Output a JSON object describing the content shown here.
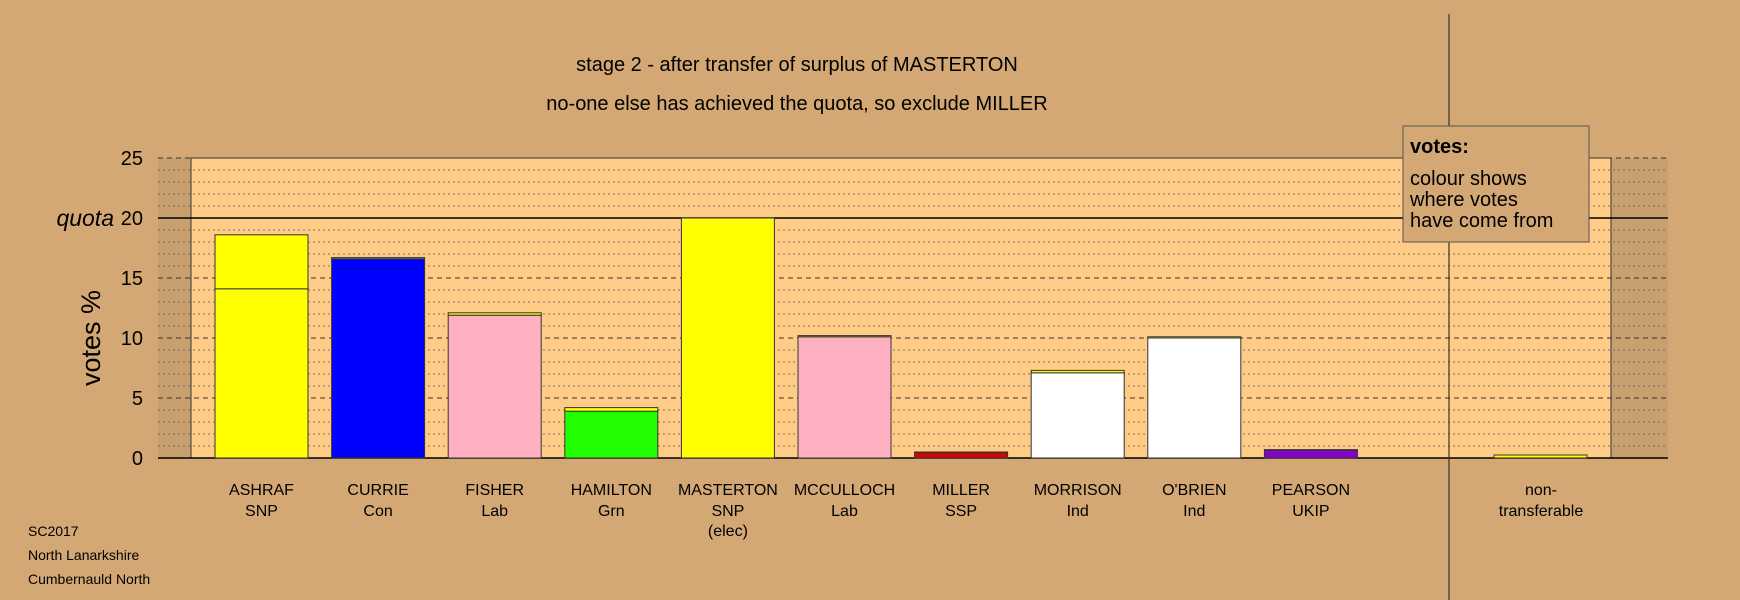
{
  "chart_data": {
    "type": "bar",
    "title": "stage 2 - after transfer of surplus of MASTERTON",
    "subtitle": "no-one else has achieved the quota, so exclude MILLER",
    "ylabel": "votes %",
    "quota_label": "quota",
    "quota": 20,
    "ylim": [
      0,
      25
    ],
    "yticks": [
      "0",
      "5",
      "10",
      "15",
      "20",
      "25"
    ],
    "candidates": [
      {
        "name": "ASHRAF",
        "party": "SNP",
        "status": "",
        "segments": [
          {
            "value": 14.1,
            "color": "#ffff00"
          },
          {
            "value": 4.5,
            "color": "#ffff00"
          }
        ]
      },
      {
        "name": "CURRIE",
        "party": "Con",
        "status": "",
        "segments": [
          {
            "value": 16.6,
            "color": "#0000ff"
          },
          {
            "value": 0.1,
            "color": "#ffff00"
          }
        ]
      },
      {
        "name": "FISHER",
        "party": "Lab",
        "status": "",
        "segments": [
          {
            "value": 11.9,
            "color": "#ffb0c0"
          },
          {
            "value": 0.2,
            "color": "#ffff00"
          }
        ]
      },
      {
        "name": "HAMILTON",
        "party": "Grn",
        "status": "",
        "segments": [
          {
            "value": 3.9,
            "color": "#22ff00"
          },
          {
            "value": 0.3,
            "color": "#ffff00"
          }
        ]
      },
      {
        "name": "MASTERTON",
        "party": "SNP",
        "status": "(elec)",
        "segments": [
          {
            "value": 20.0,
            "color": "#ffff00"
          }
        ]
      },
      {
        "name": "MCCULLOCH",
        "party": "Lab",
        "status": "",
        "segments": [
          {
            "value": 10.1,
            "color": "#ffb0c0"
          },
          {
            "value": 0.1,
            "color": "#ffff00"
          }
        ]
      },
      {
        "name": "MILLER",
        "party": "SSP",
        "status": "",
        "segments": [
          {
            "value": 0.45,
            "color": "#dd0000"
          },
          {
            "value": 0.05,
            "color": "#ffff00"
          }
        ]
      },
      {
        "name": "MORRISON",
        "party": "Ind",
        "status": "",
        "segments": [
          {
            "value": 7.1,
            "color": "#ffffff"
          },
          {
            "value": 0.2,
            "color": "#ffff00"
          }
        ]
      },
      {
        "name": "O'BRIEN",
        "party": "Ind",
        "status": "",
        "segments": [
          {
            "value": 10.0,
            "color": "#ffffff"
          },
          {
            "value": 0.1,
            "color": "#ffff00"
          }
        ]
      },
      {
        "name": "PEARSON",
        "party": "UKIP",
        "status": "",
        "segments": [
          {
            "value": 0.65,
            "color": "#8800cc"
          },
          {
            "value": 0.05,
            "color": "#ffff00"
          }
        ]
      }
    ],
    "nontransferable": {
      "label1": "non-",
      "label2": "transferable",
      "value": 0.25,
      "color": "#ffff00"
    },
    "legend": {
      "title": "votes:",
      "lines": [
        "colour shows",
        "where votes",
        "have come from"
      ]
    },
    "footer": [
      "SC2017",
      "North Lanarkshire",
      "Cumbernauld North"
    ]
  },
  "colors": {
    "background": "#d4a874",
    "plot_area": "#ffcc88",
    "band": "#c8a070"
  }
}
